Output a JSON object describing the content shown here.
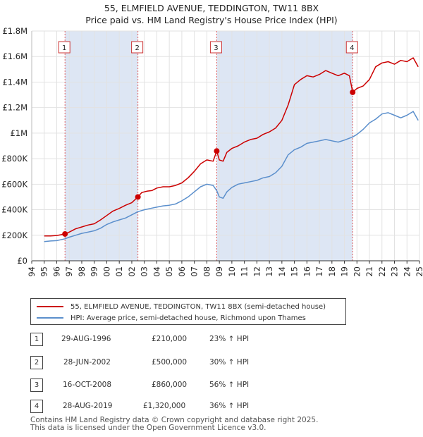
{
  "title_line1": "55, ELMFIELD AVENUE, TEDDINGTON, TW11 8BX",
  "title_line2": "Price paid vs. HM Land Registry's House Price Index (HPI)",
  "colors": {
    "property": "#cc0000",
    "hpi": "#5b8fcc",
    "band": "#dde6f4"
  },
  "legend": {
    "property": "55, ELMFIELD AVENUE, TEDDINGTON, TW11 8BX (semi-detached house)",
    "hpi": "HPI: Average price, semi-detached house, Richmond upon Thames"
  },
  "sales": [
    {
      "num": "1",
      "date": "29-AUG-1996",
      "price": "£210,000",
      "hpi": "23% ↑ HPI"
    },
    {
      "num": "2",
      "date": "28-JUN-2002",
      "price": "£500,000",
      "hpi": "30% ↑ HPI"
    },
    {
      "num": "3",
      "date": "16-OCT-2008",
      "price": "£860,000",
      "hpi": "56% ↑ HPI"
    },
    {
      "num": "4",
      "date": "28-AUG-2019",
      "price": "£1,320,000",
      "hpi": "36% ↑ HPI"
    }
  ],
  "footer": {
    "line1": "Contains HM Land Registry data © Crown copyright and database right 2025.",
    "line2": "This data is licensed under the Open Government Licence v3.0."
  },
  "chart_data": {
    "type": "line",
    "title": "55, ELMFIELD AVENUE, TEDDINGTON, TW11 8BX — Price paid vs. HM Land Registry's House Price Index (HPI)",
    "xlim": [
      1994,
      2025
    ],
    "ylim": [
      0,
      1800000
    ],
    "yticks": [
      {
        "value": 0,
        "label": "£0"
      },
      {
        "value": 200000,
        "label": "£200K"
      },
      {
        "value": 400000,
        "label": "£400K"
      },
      {
        "value": 600000,
        "label": "£600K"
      },
      {
        "value": 800000,
        "label": "£800K"
      },
      {
        "value": 1000000,
        "label": "£1M"
      },
      {
        "value": 1200000,
        "label": "£1.2M"
      },
      {
        "value": 1400000,
        "label": "£1.4M"
      },
      {
        "value": 1600000,
        "label": "£1.6M"
      },
      {
        "value": 1800000,
        "label": "£1.8M"
      }
    ],
    "xticks": [
      "1994",
      "1995",
      "1996",
      "1997",
      "1998",
      "1999",
      "2000",
      "2001",
      "2002",
      "2003",
      "2004",
      "2005",
      "2006",
      "2007",
      "2008",
      "2009",
      "2010",
      "2011",
      "2012",
      "2013",
      "2014",
      "2015",
      "2016",
      "2017",
      "2018",
      "2019",
      "2020",
      "2021",
      "2022",
      "2023",
      "2024",
      "2025"
    ],
    "shaded_bands": [
      [
        1996.66,
        2002.49
      ],
      [
        2008.79,
        2019.66
      ]
    ],
    "sale_markers": [
      {
        "label": "1",
        "x": 1996.66,
        "y": 210000
      },
      {
        "label": "2",
        "x": 2002.49,
        "y": 500000
      },
      {
        "label": "3",
        "x": 2008.79,
        "y": 860000
      },
      {
        "label": "4",
        "x": 2019.66,
        "y": 1320000
      }
    ],
    "series": [
      {
        "name": "55, ELMFIELD AVENUE, TEDDINGTON, TW11 8BX (semi-detached house)",
        "points": [
          [
            1995.0,
            195000
          ],
          [
            1995.5,
            195000
          ],
          [
            1996.0,
            198000
          ],
          [
            1996.66,
            210000
          ],
          [
            1997.0,
            225000
          ],
          [
            1997.5,
            250000
          ],
          [
            1998.0,
            265000
          ],
          [
            1998.5,
            280000
          ],
          [
            1999.0,
            290000
          ],
          [
            1999.5,
            320000
          ],
          [
            2000.0,
            355000
          ],
          [
            2000.5,
            390000
          ],
          [
            2001.0,
            410000
          ],
          [
            2001.5,
            435000
          ],
          [
            2002.0,
            455000
          ],
          [
            2002.49,
            500000
          ],
          [
            2002.8,
            535000
          ],
          [
            2003.2,
            545000
          ],
          [
            2003.6,
            550000
          ],
          [
            2004.0,
            570000
          ],
          [
            2004.5,
            580000
          ],
          [
            2005.0,
            580000
          ],
          [
            2005.5,
            590000
          ],
          [
            2006.0,
            610000
          ],
          [
            2006.5,
            650000
          ],
          [
            2007.0,
            700000
          ],
          [
            2007.5,
            760000
          ],
          [
            2008.0,
            790000
          ],
          [
            2008.5,
            780000
          ],
          [
            2008.79,
            860000
          ],
          [
            2009.0,
            790000
          ],
          [
            2009.3,
            780000
          ],
          [
            2009.6,
            850000
          ],
          [
            2010.0,
            880000
          ],
          [
            2010.5,
            900000
          ],
          [
            2011.0,
            930000
          ],
          [
            2011.5,
            950000
          ],
          [
            2012.0,
            960000
          ],
          [
            2012.5,
            990000
          ],
          [
            2013.0,
            1010000
          ],
          [
            2013.5,
            1040000
          ],
          [
            2014.0,
            1100000
          ],
          [
            2014.5,
            1220000
          ],
          [
            2015.0,
            1380000
          ],
          [
            2015.5,
            1420000
          ],
          [
            2016.0,
            1450000
          ],
          [
            2016.5,
            1440000
          ],
          [
            2017.0,
            1460000
          ],
          [
            2017.5,
            1490000
          ],
          [
            2018.0,
            1470000
          ],
          [
            2018.5,
            1450000
          ],
          [
            2019.0,
            1470000
          ],
          [
            2019.4,
            1450000
          ],
          [
            2019.66,
            1320000
          ],
          [
            2020.0,
            1350000
          ],
          [
            2020.5,
            1370000
          ],
          [
            2021.0,
            1420000
          ],
          [
            2021.5,
            1520000
          ],
          [
            2022.0,
            1550000
          ],
          [
            2022.5,
            1560000
          ],
          [
            2023.0,
            1540000
          ],
          [
            2023.5,
            1570000
          ],
          [
            2024.0,
            1560000
          ],
          [
            2024.5,
            1590000
          ],
          [
            2024.9,
            1520000
          ]
        ]
      },
      {
        "name": "HPI: Average price, semi-detached house, Richmond upon Thames",
        "points": [
          [
            1995.0,
            150000
          ],
          [
            1995.5,
            155000
          ],
          [
            1996.0,
            158000
          ],
          [
            1996.66,
            172000
          ],
          [
            1997.0,
            185000
          ],
          [
            1997.5,
            200000
          ],
          [
            1998.0,
            215000
          ],
          [
            1998.5,
            225000
          ],
          [
            1999.0,
            235000
          ],
          [
            1999.5,
            255000
          ],
          [
            2000.0,
            285000
          ],
          [
            2000.5,
            305000
          ],
          [
            2001.0,
            320000
          ],
          [
            2001.5,
            335000
          ],
          [
            2002.0,
            360000
          ],
          [
            2002.49,
            385000
          ],
          [
            2003.0,
            400000
          ],
          [
            2003.5,
            410000
          ],
          [
            2004.0,
            420000
          ],
          [
            2004.5,
            430000
          ],
          [
            2005.0,
            435000
          ],
          [
            2005.5,
            445000
          ],
          [
            2006.0,
            470000
          ],
          [
            2006.5,
            500000
          ],
          [
            2007.0,
            540000
          ],
          [
            2007.5,
            580000
          ],
          [
            2008.0,
            600000
          ],
          [
            2008.5,
            590000
          ],
          [
            2008.79,
            550000
          ],
          [
            2009.0,
            500000
          ],
          [
            2009.3,
            490000
          ],
          [
            2009.6,
            540000
          ],
          [
            2010.0,
            575000
          ],
          [
            2010.5,
            600000
          ],
          [
            2011.0,
            610000
          ],
          [
            2011.5,
            620000
          ],
          [
            2012.0,
            630000
          ],
          [
            2012.5,
            650000
          ],
          [
            2013.0,
            660000
          ],
          [
            2013.5,
            690000
          ],
          [
            2014.0,
            740000
          ],
          [
            2014.5,
            830000
          ],
          [
            2015.0,
            870000
          ],
          [
            2015.5,
            890000
          ],
          [
            2016.0,
            920000
          ],
          [
            2016.5,
            930000
          ],
          [
            2017.0,
            940000
          ],
          [
            2017.5,
            950000
          ],
          [
            2018.0,
            940000
          ],
          [
            2018.5,
            930000
          ],
          [
            2019.0,
            945000
          ],
          [
            2019.66,
            970000
          ],
          [
            2020.0,
            990000
          ],
          [
            2020.5,
            1030000
          ],
          [
            2021.0,
            1080000
          ],
          [
            2021.5,
            1110000
          ],
          [
            2022.0,
            1150000
          ],
          [
            2022.5,
            1160000
          ],
          [
            2023.0,
            1140000
          ],
          [
            2023.5,
            1120000
          ],
          [
            2024.0,
            1140000
          ],
          [
            2024.5,
            1170000
          ],
          [
            2024.9,
            1100000
          ]
        ]
      }
    ]
  }
}
